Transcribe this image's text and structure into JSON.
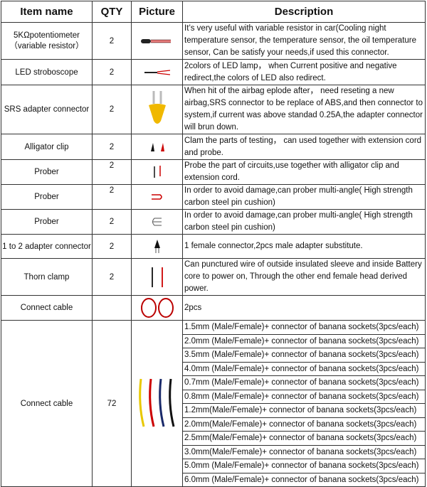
{
  "headers": {
    "name": "Item name",
    "qty": "QTY",
    "picture": "Picture",
    "description": "Description"
  },
  "rows": [
    {
      "name": "5KΩpotentiometer",
      "name2": "（variable resistor）",
      "qty": "2",
      "icon": "potentiometer-icon",
      "desc": "It’s very useful with variable resistor in car(Cooling night temperature sensor, the temperature sensor, the oil temperature sensor, Can be satisfy your needs,if used this connector."
    },
    {
      "name": "LED stroboscope",
      "qty": "2",
      "icon": "led-icon",
      "desc": "2colors of LED lamp， when Current positive and negative redirect,the colors of LED also redirect."
    },
    {
      "name": "SRS adapter connector",
      "qty": "2",
      "icon": "srs-adapter-icon",
      "desc": "When hit of the airbag eplode after， need reseting a new airbag,SRS connector to be replace of ABS,and then connector to system,if current was above standad 0.25A,the adapter connector will brun down."
    },
    {
      "name": "Alligator clip",
      "qty": "2",
      "icon": "alligator-clip-icon",
      "desc": "Clam the parts of testing， can used together with extension cord and probe."
    },
    {
      "name": "Prober",
      "qty": "2",
      "icon": "prober-icon",
      "desc": "Probe the part of circuits,use together with alligator clip and extension cord."
    },
    {
      "name": "Prober",
      "qty": "2",
      "icon": "bent-prober-icon",
      "desc": "In order to avoid damage,can prober multi-angle( High strength carbon steel pin cushion)"
    },
    {
      "name": "Prober",
      "qty": "2",
      "icon": "multi-prober-icon",
      "desc": "In order to avoid damage,can prober multi-angle( High strength carbon steel pin cushion)"
    },
    {
      "name": "1 to 2 adapter connector",
      "qty": "2",
      "icon": "adapter-icon",
      "desc": "1 female connector,2pcs male adapter substitute."
    },
    {
      "name": "Thorn clamp",
      "qty": "2",
      "icon": "thorn-clamp-icon",
      "desc": "Can punctured wire of outside insulated sleeve and inside Battery core to power on, Through the other end female head derived power."
    },
    {
      "name": "Connect cable",
      "qty": "",
      "icon": "cable-coil-icon",
      "desc": "2pcs"
    }
  ],
  "last": {
    "name": "Connect cable",
    "qty": "72",
    "icon": "banana-cables-icon",
    "items": [
      "1.5mm (Male/Female)+ connector of banana sockets(3pcs/each)",
      "2.0mm (Male/Female)+ connector of banana sockets(3pcs/each)",
      "3.5mm (Male/Female)+ connector of banana sockets(3pcs/each)",
      "4.0mm (Male/Female)+ connector of banana sockets(3pcs/each)",
      "0.7mm (Male/Female)+ connector of banana sockets(3pcs/each)",
      "0.8mm (Male/Female)+ connector of banana sockets(3pcs/each)",
      "1.2mm(Male/Female)+ connector of banana sockets(3pcs/each)",
      "2.0mm(Male/Female)+ connector of banana sockets(3pcs/each)",
      "2.5mm(Male/Female)+ connector of banana sockets(3pcs/each)",
      "3.0mm(Male/Female)+ connector of banana sockets(3pcs/each)",
      "5.0mm (Male/Female)+ connector of banana sockets(3pcs/each)",
      "6.0mm (Male/Female)+ connector of banana sockets(3pcs/each)"
    ]
  }
}
